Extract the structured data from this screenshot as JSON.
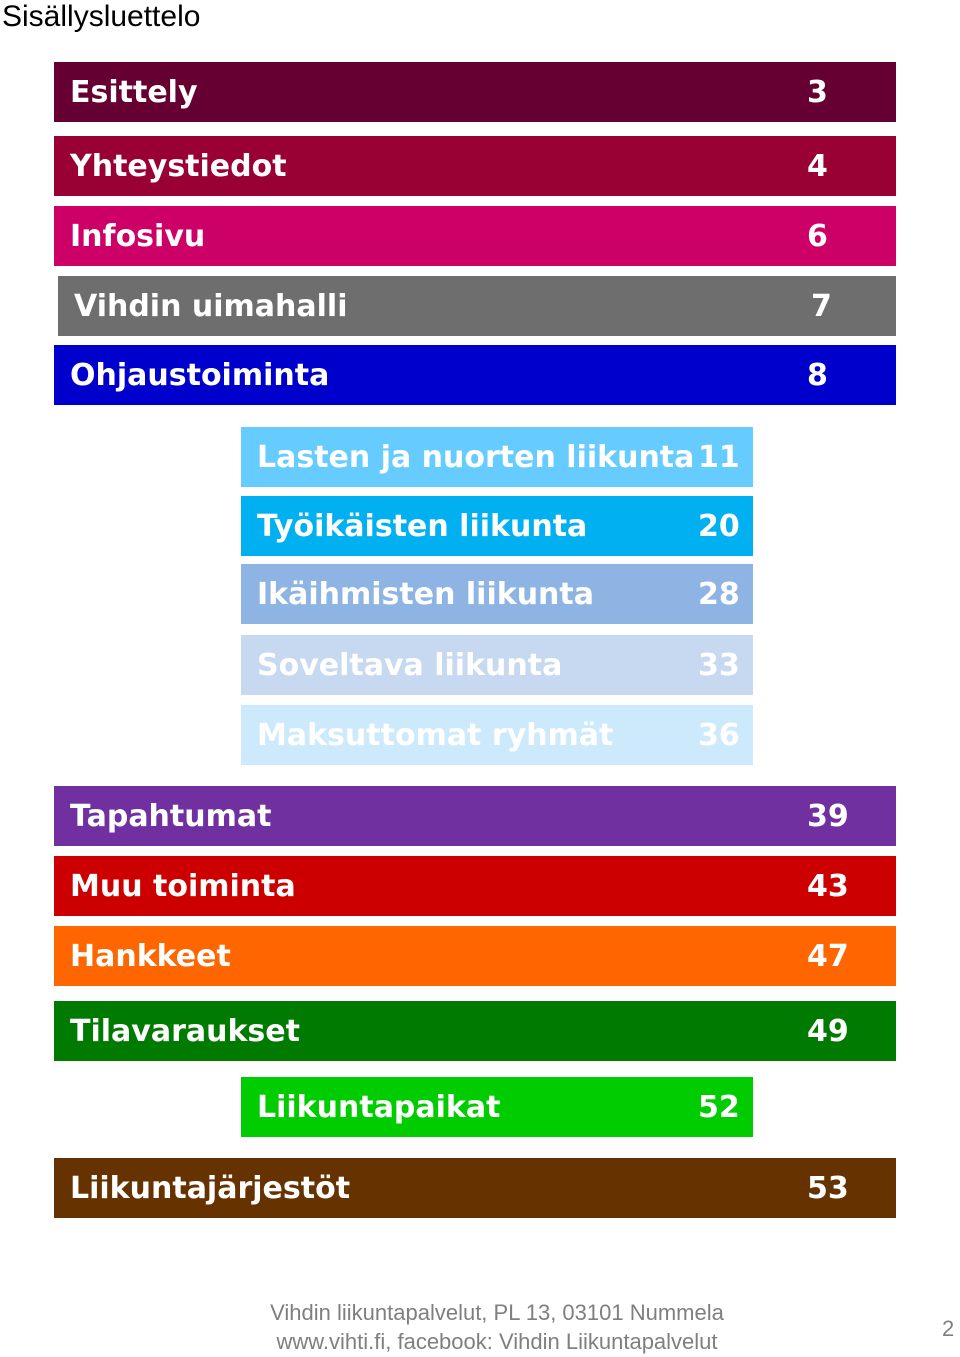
{
  "title": "Sisällysluettelo",
  "entries": [
    {
      "label": "Esittely",
      "page": "3",
      "bg": "#660033",
      "fg": "#ffffff"
    },
    {
      "label": "Yhteystiedot",
      "page": "4",
      "bg": "#990033",
      "fg": "#ffffff"
    },
    {
      "label": "Infosivu",
      "page": "6",
      "bg": "#cc0066",
      "fg": "#ffffff"
    },
    {
      "label": "Vihdin uimahalli",
      "page": "7",
      "bg": "#6e6e6e",
      "fg": "#ffffff"
    },
    {
      "label": "Ohjaustoiminta",
      "page": "8",
      "bg": "#0000cc",
      "fg": "#ffffff"
    },
    {
      "label": "Lasten ja nuorten liikunta",
      "page": "11",
      "bg": "#66ccff",
      "fg": "#ffffff"
    },
    {
      "label": "Työikäisten liikunta",
      "page": "20",
      "bg": "#00b0f0",
      "fg": "#ffffff"
    },
    {
      "label": "Ikäihmisten liikunta",
      "page": "28",
      "bg": "#8eb4e3",
      "fg": "#ffffff"
    },
    {
      "label": "Soveltava liikunta",
      "page": "33",
      "bg": "#c6d9f1",
      "fg": "#ffffff"
    },
    {
      "label": "Maksuttomat ryhmät",
      "page": "36",
      "bg": "#cdeafc",
      "fg": "#ffffff"
    },
    {
      "label": "Tapahtumat",
      "page": "39",
      "bg": "#7030a0",
      "fg": "#ffffff"
    },
    {
      "label": "Muu toiminta",
      "page": "43",
      "bg": "#cc0000",
      "fg": "#ffffff"
    },
    {
      "label": "Hankkeet",
      "page": "47",
      "bg": "#ff6600",
      "fg": "#ffffff"
    },
    {
      "label": "Tilavaraukset",
      "page": "49",
      "bg": "#007a00",
      "fg": "#ffffff"
    },
    {
      "label": "Liikuntapaikat",
      "page": "52",
      "bg": "#00cc00",
      "fg": "#ffffff"
    },
    {
      "label": "Liikuntajärjestöt",
      "page": "53",
      "bg": "#663300",
      "fg": "#ffffff"
    }
  ],
  "footer": {
    "line1": "Vihdin liikuntapalvelut, PL 13, 03101 Nummela",
    "line2": "www.vihti.fi, facebook: Vihdin Liikuntapalvelut"
  },
  "page_number": "2"
}
